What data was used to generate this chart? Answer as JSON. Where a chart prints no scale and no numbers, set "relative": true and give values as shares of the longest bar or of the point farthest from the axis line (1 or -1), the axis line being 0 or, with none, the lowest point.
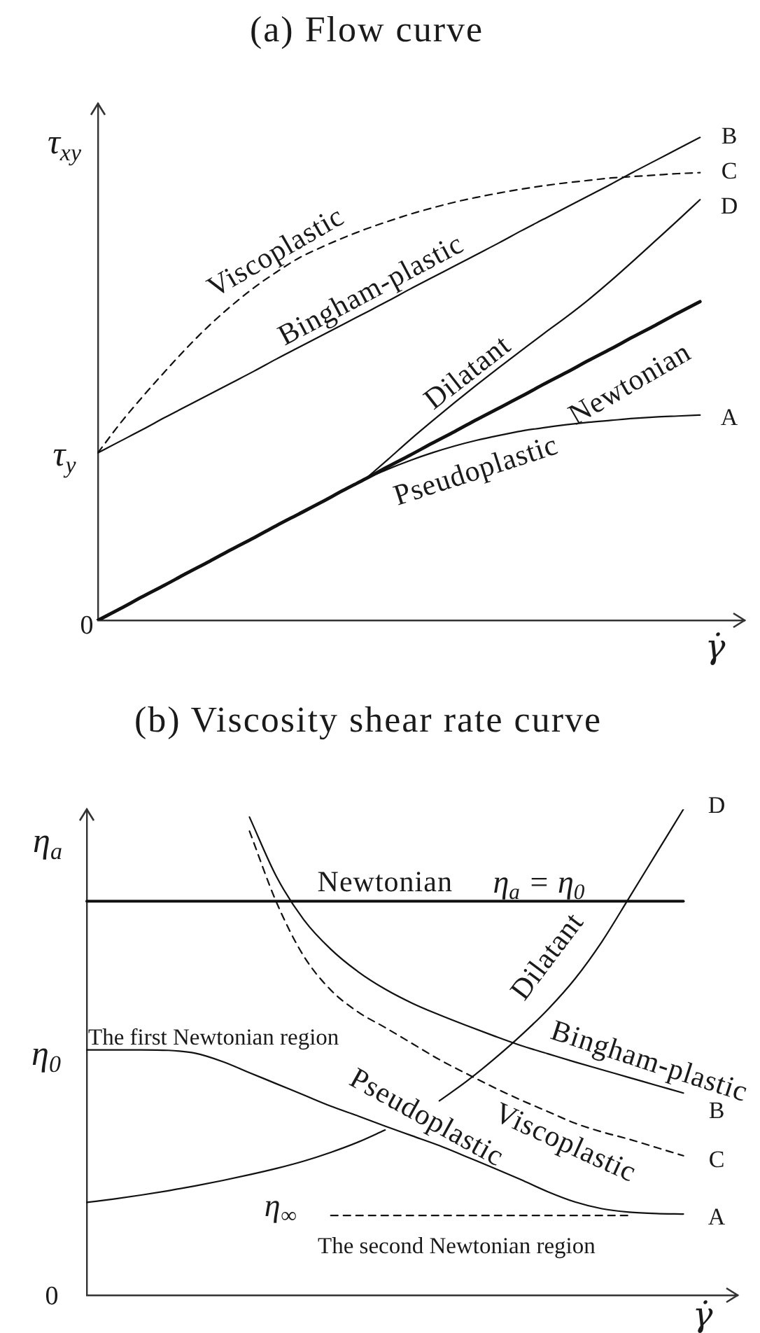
{
  "chart_data": [
    {
      "type": "line",
      "title": "(a) Flow curve",
      "xlabel": "γ̇",
      "ylabel": "τ$_{xy}$",
      "relative": true,
      "categories": [
        null,
        null,
        null,
        null,
        null,
        null,
        null,
        null,
        null,
        null,
        null,
        null,
        null,
        null,
        null,
        null,
        null,
        null,
        null,
        null,
        null,
        null,
        null,
        null,
        null,
        null,
        null,
        null,
        null,
        null
      ],
      "series": [
        {
          "name": "Newtonian",
          "color": "#111111",
          "values": [
            0,
            0.024,
            0.049,
            0.073,
            0.098,
            0.122,
            0.147,
            0.171,
            0.196,
            0.22,
            0.244,
            0.269,
            0.293,
            0.318,
            0.342,
            0.367,
            0.391,
            0.416,
            0.44,
            0.464,
            0.489,
            0.513,
            0.538,
            0.562,
            0.587,
            0.611,
            0.636,
            0.66,
            null,
            null
          ]
        },
        {
          "name": "Pseudoplastic",
          "color": "#111111",
          "values": [
            null,
            null,
            null,
            null,
            null,
            null,
            null,
            null,
            null,
            null,
            null,
            null,
            0.293,
            0.313,
            0.331,
            0.347,
            0.361,
            0.373,
            0.383,
            0.392,
            0.399,
            0.405,
            0.41,
            0.414,
            0.418,
            0.421,
            0.423,
            0.425,
            null,
            null
          ]
        },
        {
          "name": "Dilatant",
          "color": "#111111",
          "values": [
            null,
            null,
            null,
            null,
            null,
            null,
            null,
            null,
            null,
            null,
            null,
            null,
            0.293,
            0.333,
            0.374,
            0.413,
            0.451,
            0.488,
            0.524,
            0.559,
            0.594,
            0.628,
            0.664,
            0.703,
            0.744,
            0.786,
            0.828,
            0.871,
            null,
            null
          ]
        },
        {
          "name": "Bingham-plastic",
          "color": "#111111",
          "values": [
            0.347,
            0.371,
            0.395,
            0.42,
            0.444,
            0.468,
            0.492,
            0.516,
            0.541,
            0.565,
            0.589,
            0.613,
            0.637,
            0.661,
            0.686,
            0.71,
            0.734,
            0.758,
            0.782,
            0.807,
            0.831,
            0.855,
            0.879,
            0.903,
            0.928,
            0.952,
            0.976,
            1.0,
            null,
            null
          ]
        },
        {
          "name": "Viscoplastic",
          "color": "#111111",
          "line_style": "dashed",
          "values": [
            0.347,
            0.408,
            0.463,
            0.515,
            0.565,
            0.611,
            0.652,
            0.689,
            0.721,
            0.75,
            0.772,
            0.792,
            0.81,
            0.826,
            0.841,
            0.854,
            0.866,
            0.876,
            0.885,
            0.893,
            0.9,
            0.906,
            0.911,
            0.916,
            0.919,
            0.922,
            0.925,
            0.927,
            null,
            null
          ]
        }
      ],
      "annotations": [
        "B",
        "C",
        "D",
        "A",
        "τ$_{y}$",
        "0"
      ]
    },
    {
      "type": "line",
      "title": "(b) Viscosity shear rate curve",
      "xlabel": "γ̇",
      "ylabel": "η$_{a}$",
      "relative": true,
      "categories": [
        null,
        null,
        null,
        null,
        null,
        null,
        null,
        null,
        null,
        null,
        null,
        null,
        null,
        null,
        null,
        null,
        null,
        null,
        null,
        null,
        null,
        null,
        null,
        null,
        null
      ],
      "series": [
        {
          "name": "Newtonian",
          "color": "#111111",
          "values": [
            0.811,
            0.811,
            0.811,
            0.811,
            0.811,
            0.811,
            0.811,
            0.811,
            0.811,
            0.811,
            0.811,
            0.811,
            0.811,
            0.811,
            0.811,
            0.811,
            0.811,
            0.811,
            0.811,
            0.811,
            0.811,
            0.811,
            0.811,
            null,
            null
          ]
        },
        {
          "name": "Dilatant",
          "color": "#111111",
          "values": [
            0.191,
            0.198,
            0.206,
            0.215,
            0.225,
            0.236,
            0.248,
            0.261,
            0.276,
            0.294,
            0.315,
            0.34,
            null,
            0.4,
            0.44,
            0.485,
            0.534,
            0.588,
            0.651,
            0.728,
            0.818,
            0.909,
            1.0,
            null,
            null
          ]
        },
        {
          "name": "Bingham-plastic",
          "color": "#111111",
          "values": [
            null,
            null,
            null,
            null,
            null,
            null,
            0.984,
            0.861,
            0.773,
            0.712,
            0.666,
            0.63,
            0.601,
            0.577,
            0.555,
            0.534,
            0.514,
            0.497,
            0.48,
            0.464,
            0.448,
            0.432,
            0.416,
            null,
            null
          ]
        },
        {
          "name": "Viscoplastic",
          "color": "#111111",
          "line_style": "dashed",
          "values": [
            null,
            null,
            null,
            null,
            null,
            null,
            0.955,
            0.808,
            0.698,
            0.628,
            0.583,
            0.551,
            0.518,
            0.485,
            0.456,
            0.428,
            0.402,
            0.378,
            0.354,
            0.336,
            0.321,
            0.304,
            0.287,
            null,
            null
          ]
        },
        {
          "name": "Pseudoplastic",
          "color": "#111111",
          "values": [
            0.505,
            0.505,
            0.505,
            0.504,
            0.498,
            0.481,
            0.458,
            0.435,
            0.412,
            0.389,
            0.369,
            0.348,
            0.328,
            0.308,
            0.285,
            0.262,
            0.238,
            0.213,
            0.192,
            0.178,
            0.171,
            0.168,
            0.167,
            null,
            null
          ]
        },
        {
          "name": "η$_{∞}$",
          "color": "#111111",
          "line_style": "dashed",
          "values": [
            null,
            null,
            null,
            null,
            null,
            null,
            null,
            null,
            null,
            0.164,
            0.164,
            0.164,
            0.164,
            0.164,
            0.164,
            0.164,
            0.164,
            0.164,
            0.164,
            0.164,
            0.164,
            null,
            null,
            null,
            null
          ]
        }
      ],
      "annotations": [
        "D",
        "η$_{a}$ = η$_{0}$",
        "The first Newtonian region",
        "η$_{0}$",
        "B",
        "C",
        "A",
        "The second Newtonian region",
        "0"
      ]
    }
  ]
}
